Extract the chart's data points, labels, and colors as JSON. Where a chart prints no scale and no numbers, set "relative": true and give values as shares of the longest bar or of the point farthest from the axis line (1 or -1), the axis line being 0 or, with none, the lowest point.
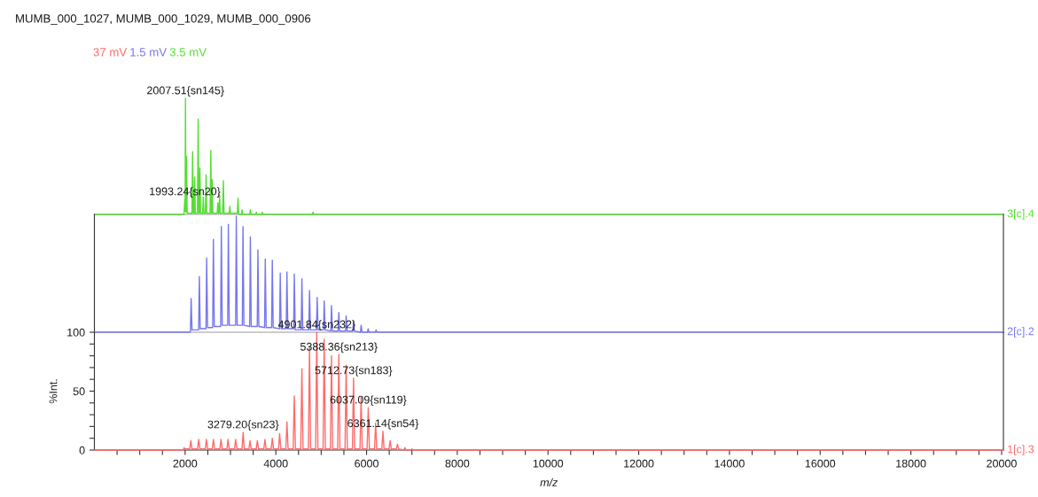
{
  "chart_data": [
    {
      "type": "line",
      "title": "MUMB_000_1027, MUMB_000_1029, MUMB_000_0906",
      "relative": true,
      "xlim": [
        0,
        20040
      ],
      "tick_labels": false,
      "series": [
        {
          "name": "3.5 mV",
          "color": "#55dd33",
          "x": [
            0,
            1975,
            1993.24,
            2000,
            2007.51,
            2018,
            2029,
            2045,
            2150,
            2165,
            2180,
            2197,
            2210,
            2225,
            2272,
            2287,
            2302,
            2313,
            2326,
            2340,
            2385,
            2400,
            2415,
            2447,
            2462,
            2477,
            2551,
            2566,
            2580,
            2585,
            2597,
            2610,
            2706,
            2721,
            2735,
            2747,
            2760,
            2775,
            2828,
            2843,
            2858,
            2972,
            2985,
            3000,
            3151,
            3166,
            3181,
            3243,
            3256,
            3270,
            3425,
            3438,
            3452,
            3557,
            3570,
            3583,
            3687,
            3700,
            3713,
            4807,
            4820,
            4833,
            20040
          ],
          "values": [
            0,
            0,
            0.13,
            0.03,
            1,
            0.02,
            0.5,
            0.01,
            0.01,
            0.54,
            0.01,
            0.01,
            0.32,
            0.01,
            0.01,
            0.82,
            0.01,
            0.01,
            0.4,
            0.01,
            0.01,
            0.15,
            0.01,
            0.01,
            0.34,
            0.01,
            0.01,
            0.55,
            0.01,
            0.01,
            0.3,
            0.01,
            0.01,
            0.1,
            0.01,
            0.01,
            0.17,
            0.01,
            0.01,
            0.29,
            0.01,
            0.01,
            0.07,
            0.01,
            0.01,
            0.14,
            0,
            0,
            0.04,
            0,
            0,
            0.04,
            0,
            0,
            0.02,
            0,
            0,
            0.02,
            0,
            0,
            0.02,
            0,
            0
          ]
        }
      ],
      "annotations": [
        "3[c].4",
        {
          "text": "2007.51{sn145}",
          "x": 2007.51,
          "y": 1
        },
        {
          "text": "1993.24{sn20}",
          "x": 1993.24,
          "y": 0.13
        }
      ]
    },
    {
      "type": "line",
      "relative": true,
      "xlim": [
        0,
        20040
      ],
      "tick_labels": false,
      "series": [
        {
          "name": "1.5 mV",
          "color": "#7777ee",
          "x": [
            0,
            2100,
            2117,
            2132,
            2152,
            2298,
            2313,
            2333,
            2460,
            2475,
            2495,
            2608,
            2623,
            2643,
            2783,
            2798,
            2818,
            2938,
            2953,
            2973,
            3113,
            3128,
            3148,
            3261,
            3276,
            3296,
            3423,
            3438,
            3458,
            3590,
            3605,
            3625,
            3752,
            3767,
            3787,
            3907,
            3922,
            3942,
            4082,
            4097,
            4117,
            4229,
            4244,
            4264,
            4392,
            4407,
            4427,
            4559,
            4574,
            4594,
            4727,
            4742,
            4762,
            4896,
            4911,
            4931,
            5051,
            5066,
            5086,
            5212,
            5227,
            5247,
            5373,
            5388,
            5408,
            5535,
            5550,
            5570,
            5696,
            5711,
            5731,
            5865,
            5880,
            5900,
            6020,
            6035,
            6055,
            6194,
            6209,
            6229,
            20040
          ],
          "values": [
            0,
            0,
            0.01,
            0.29,
            0.02,
            0.02,
            0.48,
            0.03,
            0.03,
            0.64,
            0.04,
            0.04,
            0.8,
            0.05,
            0.05,
            0.91,
            0.06,
            0.06,
            0.93,
            0.06,
            0.06,
            1,
            0.06,
            0.06,
            0.91,
            0.06,
            0.05,
            0.82,
            0.05,
            0.05,
            0.71,
            0.05,
            0.04,
            0.63,
            0.04,
            0.04,
            0.62,
            0.04,
            0.03,
            0.51,
            0.03,
            0.03,
            0.52,
            0.03,
            0.03,
            0.5,
            0.02,
            0.02,
            0.46,
            0.02,
            0.02,
            0.36,
            0.02,
            0.02,
            0.3,
            0.02,
            0.02,
            0.27,
            0.02,
            0.01,
            0.23,
            0.01,
            0.01,
            0.17,
            0.01,
            0.01,
            0.14,
            0.01,
            0.01,
            0.09,
            0.01,
            0,
            0.06,
            0,
            0,
            0.03,
            0,
            0,
            0.02,
            0,
            0
          ]
        }
      ],
      "annotations": [
        "2[c].2"
      ]
    },
    {
      "type": "line",
      "xlabel": "m/z",
      "ylabel": "%Int.",
      "xlim": [
        0,
        20040
      ],
      "ylim": [
        0,
        100
      ],
      "xticks": [
        {
          "value": 500,
          "label": null
        },
        {
          "value": 1000,
          "label": null
        },
        {
          "value": 1500,
          "label": null
        },
        2000,
        {
          "value": 2500,
          "label": null
        },
        {
          "value": 3000,
          "label": null
        },
        {
          "value": 3500,
          "label": null
        },
        4000,
        {
          "value": 4500,
          "label": null
        },
        {
          "value": 5000,
          "label": null
        },
        {
          "value": 5500,
          "label": null
        },
        6000,
        {
          "value": 6500,
          "label": null
        },
        {
          "value": 7000,
          "label": null
        },
        {
          "value": 7500,
          "label": null
        },
        8000,
        {
          "value": 8500,
          "label": null
        },
        {
          "value": 9000,
          "label": null
        },
        {
          "value": 9500,
          "label": null
        },
        10000,
        {
          "value": 10500,
          "label": null
        },
        {
          "value": 11000,
          "label": null
        },
        {
          "value": 11500,
          "label": null
        },
        12000,
        {
          "value": 12500,
          "label": null
        },
        {
          "value": 13000,
          "label": null
        },
        {
          "value": 13500,
          "label": null
        },
        14000,
        {
          "value": 14500,
          "label": null
        },
        {
          "value": 15000,
          "label": null
        },
        {
          "value": 15500,
          "label": null
        },
        16000,
        {
          "value": 16500,
          "label": null
        },
        {
          "value": 17000,
          "label": null
        },
        {
          "value": 17500,
          "label": null
        },
        18000,
        {
          "value": 18500,
          "label": null
        },
        {
          "value": 19000,
          "label": null
        },
        {
          "value": 19500,
          "label": null
        },
        20000
      ],
      "yticks": [
        0,
        {
          "value": 10,
          "label": null
        },
        {
          "value": 20,
          "label": null
        },
        {
          "value": 30,
          "label": null
        },
        {
          "value": 40,
          "label": null
        },
        50,
        {
          "value": 60,
          "label": null
        },
        {
          "value": 70,
          "label": null
        },
        {
          "value": 80,
          "label": null
        },
        {
          "value": 90,
          "label": null
        },
        100
      ],
      "series": [
        {
          "name": "37 mV",
          "color": "#ff6b6b",
          "x": [
            0,
            1960,
            1977,
            1995,
            2100,
            2126,
            2150,
            2275,
            2300,
            2325,
            2444,
            2469,
            2494,
            2599,
            2624,
            2649,
            2766,
            2791,
            2816,
            2921,
            2946,
            2971,
            3089,
            3114,
            3139,
            3254,
            3279.2,
            3304,
            3406,
            3431,
            3456,
            3568,
            3593,
            3618,
            3735,
            3760,
            3785,
            3897,
            3922,
            3947,
            4059,
            4084,
            4109,
            4220,
            4245,
            4270,
            4382,
            4407,
            4432,
            4549,
            4574,
            4599,
            4717,
            4742,
            4767,
            4877,
            4901.84,
            4927,
            5041,
            5066,
            5091,
            5202,
            5227,
            5252,
            5363,
            5388.36,
            5413,
            5525,
            5550,
            5575,
            5688,
            5712.73,
            5738,
            5855,
            5880,
            5905,
            6012,
            6037.09,
            6062,
            6175,
            6200,
            6225,
            6336,
            6361.14,
            6386,
            6495,
            6520,
            6545,
            6655,
            6680,
            6705,
            6820,
            6845,
            6870,
            6975,
            7000,
            7025,
            20040
          ],
          "values": [
            0,
            0,
            2,
            1,
            1,
            8,
            1,
            1,
            9,
            1,
            1,
            9,
            1,
            1,
            9,
            1,
            1,
            9,
            1,
            1,
            9,
            1,
            1,
            9,
            1,
            1,
            15,
            1,
            1,
            8,
            1,
            1,
            8,
            1,
            1,
            9,
            1,
            1,
            10,
            1,
            1,
            14,
            1,
            1,
            24,
            1,
            1,
            46,
            1,
            1,
            69,
            1,
            1,
            87,
            1,
            1,
            100,
            1,
            1,
            94,
            1,
            1,
            80,
            1,
            1,
            81,
            1,
            1,
            72,
            1,
            1,
            61,
            1,
            1,
            45,
            1,
            1,
            36,
            1,
            1,
            23,
            1,
            1,
            16,
            1,
            1,
            8,
            1,
            1,
            5,
            1,
            0,
            2,
            0,
            0,
            1,
            0,
            0
          ]
        }
      ],
      "annotations": [
        "1[c].3",
        {
          "text": "4901.84{sn232}",
          "x": 4901.84,
          "y": 100
        },
        {
          "text": "5388.36{sn213}",
          "x": 5388.36,
          "y": 81
        },
        {
          "text": "5712.73{sn183}",
          "x": 5712.73,
          "y": 61
        },
        {
          "text": "6037.09{sn119}",
          "x": 6037.09,
          "y": 36
        },
        {
          "text": "6361.14{sn54}",
          "x": 6361.14,
          "y": 16
        },
        {
          "text": "3279.20{sn23}",
          "x": 3279.2,
          "y": 15
        }
      ]
    }
  ]
}
